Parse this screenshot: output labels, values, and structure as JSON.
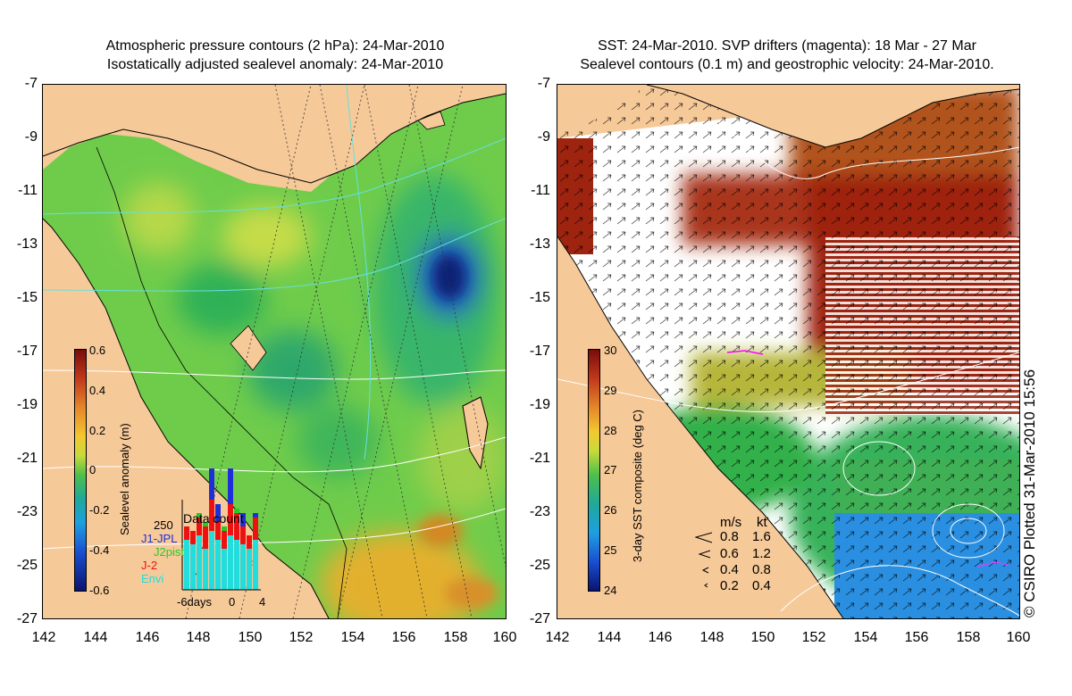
{
  "left_panel": {
    "title_line1": "Atmospheric pressure contours (2 hPa): 24-Mar-2010",
    "title_line2": "Isostatically adjusted sealevel anomaly: 24-Mar-2010",
    "y_ticks": [
      "-7",
      "-9",
      "-11",
      "-13",
      "-15",
      "-17",
      "-19",
      "-21",
      "-23",
      "-25",
      "-27"
    ],
    "x_ticks": [
      "142",
      "144",
      "146",
      "148",
      "150",
      "152",
      "154",
      "156",
      "158",
      "160"
    ],
    "colorbar": {
      "label": "Sealevel anomaly (m)",
      "ticks": [
        "0.6",
        "0.4",
        "0.2",
        "0",
        "-0.2",
        "-0.4",
        "-0.6"
      ],
      "range": [
        -0.6,
        0.6
      ]
    },
    "data_count": {
      "title": "Data count",
      "max_label": "250",
      "legend": [
        {
          "name": "J1-JPL",
          "color": "#1f2fd8"
        },
        {
          "name": "J2pist",
          "color": "#22cc22"
        },
        {
          "name": "J-2",
          "color": "#ee1111"
        },
        {
          "name": "Envi",
          "color": "#22dddd"
        }
      ],
      "x_labels": [
        "-6days",
        "0",
        "4"
      ]
    }
  },
  "right_panel": {
    "title_line1": "SST: 24-Mar-2010. SVP drifters (magenta): 18 Mar - 27 Mar",
    "title_line2": "Sealevel contours (0.1 m) and geostrophic velocity: 24-Mar-2010.",
    "y_ticks": [
      "-7",
      "-9",
      "-11",
      "-13",
      "-15",
      "-17",
      "-19",
      "-21",
      "-23",
      "-25",
      "-27"
    ],
    "x_ticks": [
      "142",
      "144",
      "146",
      "148",
      "150",
      "152",
      "154",
      "156",
      "158",
      "160"
    ],
    "colorbar": {
      "label": "3-day SST composite (deg C)",
      "ticks": [
        "30",
        "29",
        "28",
        "27",
        "26",
        "25",
        "24"
      ],
      "range": [
        24,
        30
      ]
    },
    "velocity_legend": {
      "header_ms": "m/s",
      "header_kt": "kt",
      "rows": [
        {
          "ms": "0.8",
          "kt": "1.6"
        },
        {
          "ms": "0.6",
          "kt": "1.2"
        },
        {
          "ms": "0.4",
          "kt": "0.8"
        },
        {
          "ms": "0.2",
          "kt": "0.4"
        }
      ]
    }
  },
  "copyright": "© CSIRO Plotted 31-Mar-2010 15:56",
  "colors": {
    "land": "#f6c999",
    "anomaly_green": "#5bc84a",
    "anomaly_blue": "#123a9a",
    "sst_red": "#a6250f",
    "sst_green": "#33b04a",
    "sst_blue": "#2a8fe0"
  }
}
